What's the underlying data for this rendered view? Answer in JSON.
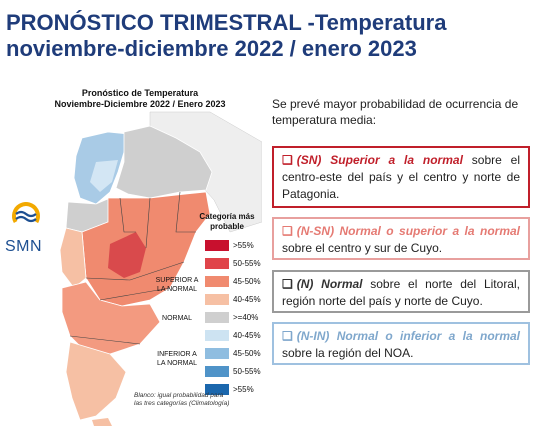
{
  "title": {
    "line1": "PRONÓSTICO TRIMESTRAL -Temperatura",
    "line2": "noviembre-diciembre 2022 / enero 2023"
  },
  "map": {
    "title_line1": "Pronóstico de Temperatura",
    "title_line2": "Noviembre-Diciembre 2022 / Enero 2023",
    "logo_text": "SMN",
    "legend_title_line1": "Categoría más",
    "legend_title_line2": "probable",
    "legend": [
      {
        "label": ">55%",
        "color": "#c8102e"
      },
      {
        "label": "50-55%",
        "color": "#e0444a"
      },
      {
        "label": "45-50%",
        "color": "#f08a6f"
      },
      {
        "label": "40-45%",
        "color": "#f6c0a4"
      },
      {
        "label": ">=40%",
        "color": "#cfcfcf"
      },
      {
        "label": "40-45%",
        "color": "#cde3f2"
      },
      {
        "label": "45-50%",
        "color": "#8fbde0"
      },
      {
        "label": "50-55%",
        "color": "#4f93c8"
      },
      {
        "label": ">55%",
        "color": "#1b67ad"
      }
    ],
    "group_superior_line1": "SUPERIOR A",
    "group_superior_line2": "LA NORMAL",
    "group_normal": "NORMAL",
    "group_inferior_line1": "INFERIOR A",
    "group_inferior_line2": "LA NORMAL",
    "note_line1": "Blanco: igual probabilidad para",
    "note_line2": "las tres categorías (Climatología)"
  },
  "intro": "Se prevé mayor probabilidad de ocurrencia de temperatura media:",
  "boxes": [
    {
      "check": "❑",
      "label": "(SN) Superior a la normal",
      "text": " sobre el centro-este del país y el centro y norte de Patagonia."
    },
    {
      "check": "❑",
      "label": "(N-SN) Normal o superior a la normal",
      "text": " sobre el centro y sur de Cuyo."
    },
    {
      "check": "❑",
      "label": "(N) Normal",
      "text": " sobre el norte del Litoral, región norte del país y norte de Cuyo."
    },
    {
      "check": "❑",
      "label": "(N-IN) Normal o inferior a la normal",
      "text": " sobre la región del NOA."
    }
  ]
}
